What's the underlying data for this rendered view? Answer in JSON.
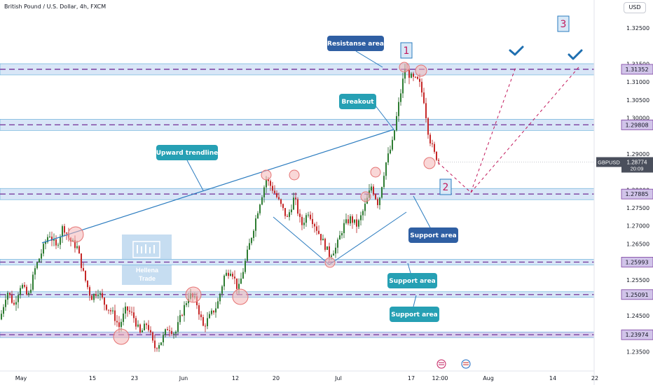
{
  "header": {
    "symbol_title": "British Pound / U.S. Dollar, 4h, FXCM",
    "currency": "USD"
  },
  "watermark": {
    "line1": "Hellena",
    "line2": "Trade"
  },
  "chart_data": {
    "type": "candlestick",
    "title": "British Pound / U.S. Dollar, 4h, FXCM",
    "ylim": [
      1.232,
      1.3285
    ],
    "y_ticks": [
      "1.32500",
      "1.31500",
      "1.31000",
      "1.30500",
      "1.30000",
      "1.29000",
      "1.28000",
      "1.27500",
      "1.27000",
      "1.26500",
      "1.25500",
      "1.24500",
      "1.23500"
    ],
    "x_ticks": [
      "May",
      "15",
      "23",
      "Jun",
      "12",
      "20",
      "Jul",
      "17",
      "12:00",
      "Aug",
      "14",
      "22"
    ],
    "price_levels": [
      {
        "value": "1.31352",
        "price": 1.31352,
        "style": "resistance"
      },
      {
        "value": "1.29808",
        "price": 1.29808,
        "style": "resistance"
      },
      {
        "value": "1.27885",
        "price": 1.27885,
        "style": "support"
      },
      {
        "value": "1.25993",
        "price": 1.25993,
        "style": "support"
      },
      {
        "value": "1.25091",
        "price": 1.25091,
        "style": "support"
      },
      {
        "value": "1.23974",
        "price": 1.23974,
        "style": "support"
      }
    ],
    "current_price": {
      "symbol": "GBPUSD",
      "value": "1.28774",
      "countdown": "20:09",
      "price": 1.28774
    },
    "annotations": [
      {
        "label": "Resistanse area"
      },
      {
        "label": "Breakout"
      },
      {
        "label": "Upward trendline"
      },
      {
        "label": "Support area"
      },
      {
        "label": "Support area"
      },
      {
        "label": "Support area"
      }
    ],
    "wave_labels": [
      "1",
      "2",
      "3"
    ],
    "series": [
      {
        "name": "GBPUSD",
        "anchors": [
          [
            0,
            1.244
          ],
          [
            10,
            1.252
          ],
          [
            20,
            1.248
          ],
          [
            30,
            1.254
          ],
          [
            40,
            1.25
          ],
          [
            50,
            1.258
          ],
          [
            60,
            1.263
          ],
          [
            70,
            1.268
          ],
          [
            80,
            1.264
          ],
          [
            90,
            1.27
          ],
          [
            100,
            1.266
          ],
          [
            110,
            1.264
          ],
          [
            120,
            1.256
          ],
          [
            130,
            1.25
          ],
          [
            140,
            1.252
          ],
          [
            150,
            1.248
          ],
          [
            160,
            1.246
          ],
          [
            170,
            1.242
          ],
          [
            180,
            1.247
          ],
          [
            190,
            1.245
          ],
          [
            200,
            1.24
          ],
          [
            210,
            1.243
          ],
          [
            220,
            1.236
          ],
          [
            230,
            1.238
          ],
          [
            240,
            1.242
          ],
          [
            250,
            1.24
          ],
          [
            260,
            1.246
          ],
          [
            270,
            1.251
          ],
          [
            280,
            1.249
          ],
          [
            290,
            1.242
          ],
          [
            300,
            1.245
          ],
          [
            310,
            1.248
          ],
          [
            320,
            1.256
          ],
          [
            330,
            1.258
          ],
          [
            340,
            1.252
          ],
          [
            350,
            1.26
          ],
          [
            360,
            1.268
          ],
          [
            370,
            1.276
          ],
          [
            380,
            1.283
          ],
          [
            390,
            1.28
          ],
          [
            400,
            1.276
          ],
          [
            410,
            1.272
          ],
          [
            420,
            1.278
          ],
          [
            430,
            1.27
          ],
          [
            440,
            1.274
          ],
          [
            450,
            1.27
          ],
          [
            460,
            1.266
          ],
          [
            470,
            1.262
          ],
          [
            480,
            1.264
          ],
          [
            490,
            1.27
          ],
          [
            500,
            1.272
          ],
          [
            510,
            1.27
          ],
          [
            520,
            1.275
          ],
          [
            530,
            1.281
          ],
          [
            540,
            1.276
          ],
          [
            550,
            1.287
          ],
          [
            560,
            1.293
          ],
          [
            570,
            1.305
          ],
          [
            578,
            1.3136
          ],
          [
            588,
            1.311
          ],
          [
            598,
            1.31
          ],
          [
            605,
            1.305
          ],
          [
            612,
            1.295
          ],
          [
            620,
            1.29
          ],
          [
            627,
            1.288
          ]
        ]
      }
    ]
  }
}
